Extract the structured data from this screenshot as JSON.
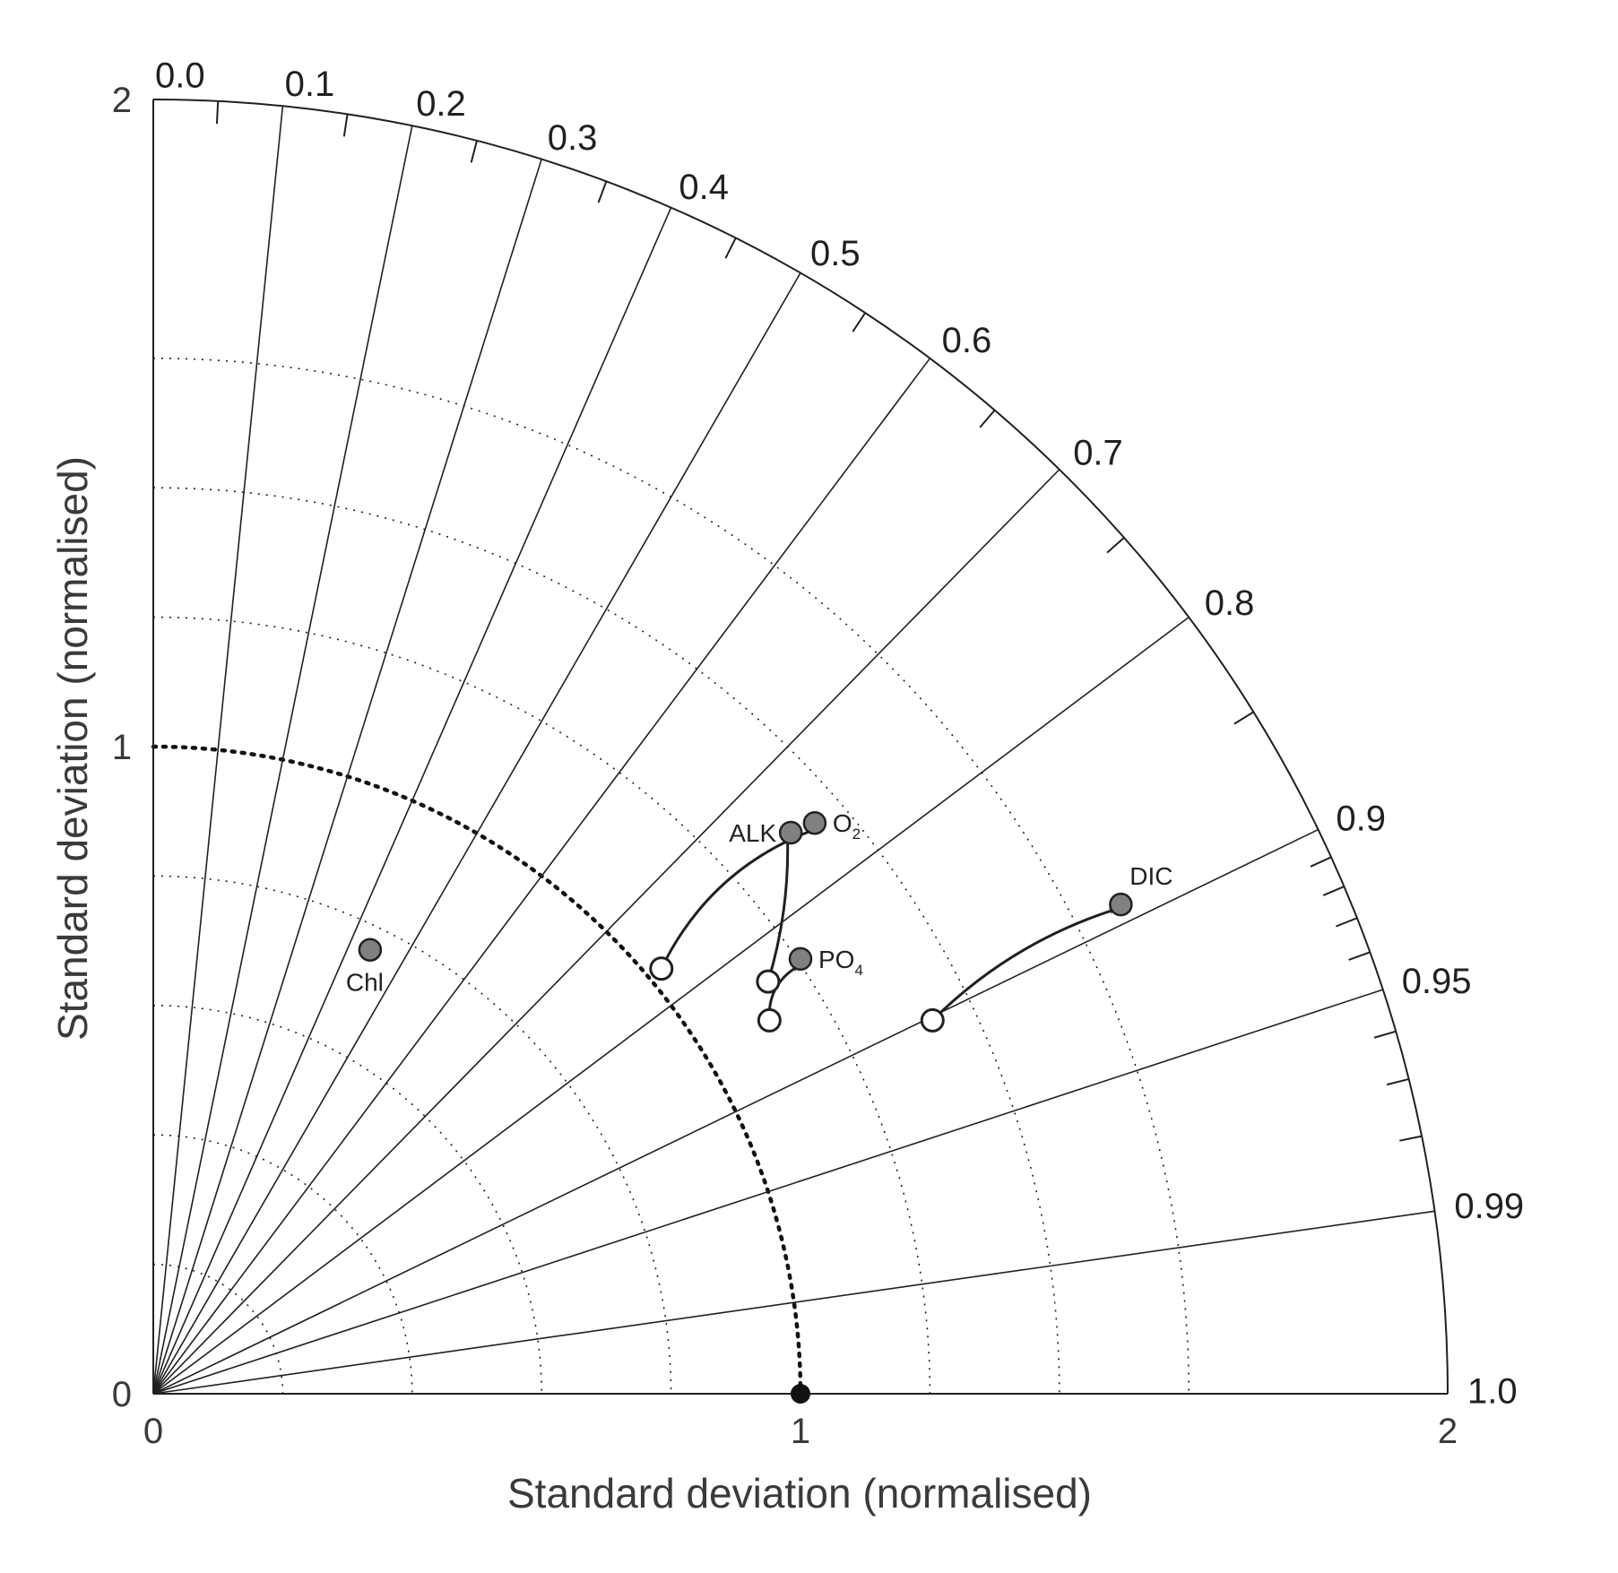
{
  "chart_data": {
    "type": "scatter",
    "subtype": "taylor-diagram",
    "xlabel": "Standard deviation (normalised)",
    "ylabel": "Standard deviation (normalised)",
    "xlim": [
      0,
      2
    ],
    "ylim": [
      0,
      2
    ],
    "std_tick_labels": [
      "0",
      "1",
      "2"
    ],
    "correlation_labels": [
      {
        "r": 0.0,
        "label": "0.0"
      },
      {
        "r": 0.1,
        "label": "0.1"
      },
      {
        "r": 0.2,
        "label": "0.2"
      },
      {
        "r": 0.3,
        "label": "0.3"
      },
      {
        "r": 0.4,
        "label": "0.4"
      },
      {
        "r": 0.5,
        "label": "0.5"
      },
      {
        "r": 0.6,
        "label": "0.6"
      },
      {
        "r": 0.7,
        "label": "0.7"
      },
      {
        "r": 0.8,
        "label": "0.8"
      },
      {
        "r": 0.9,
        "label": "0.9"
      },
      {
        "r": 0.95,
        "label": "0.95"
      },
      {
        "r": 0.99,
        "label": "0.99"
      },
      {
        "r": 1.0,
        "label": "1.0"
      }
    ],
    "correlation_minor_ticks": [
      0.05,
      0.15,
      0.25,
      0.35,
      0.45,
      0.55,
      0.65,
      0.75,
      0.85,
      0.91,
      0.92,
      0.93,
      0.94,
      0.96,
      0.97,
      0.98
    ],
    "std_arcs_dotted": [
      0.2,
      0.4,
      0.6,
      0.8,
      1.2,
      1.4,
      1.6
    ],
    "reference_arc": 1.0,
    "reference_point": {
      "x": 1.0,
      "y": 0.0
    },
    "grid": true,
    "points": [
      {
        "label": "Chl",
        "sub": "",
        "x": 0.335,
        "y": 0.686,
        "fill": "#808080",
        "label_pos": "below"
      },
      {
        "label": "ALK",
        "sub": "",
        "x": 0.985,
        "y": 0.867,
        "fill": "#808080",
        "label_pos": "left"
      },
      {
        "label": "O",
        "sub": "2",
        "x": 1.022,
        "y": 0.882,
        "fill": "#808080",
        "label_pos": "right"
      },
      {
        "label": "PO",
        "sub": "4",
        "x": 1.0,
        "y": 0.672,
        "fill": "#808080",
        "label_pos": "right"
      },
      {
        "label": "DIC",
        "sub": "",
        "x": 1.495,
        "y": 0.756,
        "fill": "#808080",
        "label_pos": "above"
      }
    ],
    "start_points": [
      {
        "x": 0.785,
        "y": 0.657
      },
      {
        "x": 0.95,
        "y": 0.637
      },
      {
        "x": 0.952,
        "y": 0.577
      },
      {
        "x": 1.204,
        "y": 0.577
      }
    ],
    "arrows": [
      {
        "from": [
          0.785,
          0.657
        ],
        "to": [
          1.022,
          0.872
        ],
        "bend": -0.2
      },
      {
        "from": [
          0.95,
          0.637
        ],
        "to": [
          0.98,
          0.857
        ],
        "bend": 0.08
      },
      {
        "from": [
          0.952,
          0.577
        ],
        "to": [
          0.995,
          0.66
        ],
        "bend": -0.3
      },
      {
        "from": [
          1.204,
          0.577
        ],
        "to": [
          1.485,
          0.748
        ],
        "bend": -0.12
      }
    ],
    "colors": {
      "filled_marker": "#808080",
      "open_marker": "#ffffff",
      "line": "#231f20",
      "reference": "#111111"
    }
  }
}
